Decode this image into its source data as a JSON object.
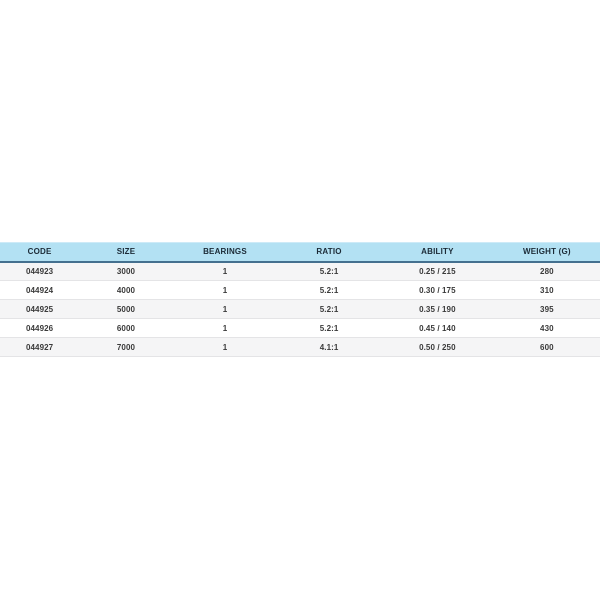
{
  "colors": {
    "page_background": "#ffffff",
    "header_background": "#b3e1f3",
    "header_underline": "#44708f",
    "row_alt_background": "#f5f5f6",
    "row_background": "#ffffff",
    "row_separator": "#e4e4e6",
    "header_text": "#1b2a36",
    "cell_text": "#3a3a3a"
  },
  "table": {
    "columns": {
      "code": "CODE",
      "size": "SIZE",
      "bearings": "BEARINGS",
      "ratio": "RATIO",
      "ability": "ABILITY",
      "weight": "WEIGHT (g)"
    },
    "rows": [
      {
        "code": "044923",
        "size": "3000",
        "bearings": "1",
        "ratio": "5.2:1",
        "ability": "0.25 / 215",
        "weight": "280"
      },
      {
        "code": "044924",
        "size": "4000",
        "bearings": "1",
        "ratio": "5.2:1",
        "ability": "0.30 / 175",
        "weight": "310"
      },
      {
        "code": "044925",
        "size": "5000",
        "bearings": "1",
        "ratio": "5.2:1",
        "ability": "0.35 / 190",
        "weight": "395"
      },
      {
        "code": "044926",
        "size": "6000",
        "bearings": "1",
        "ratio": "5.2:1",
        "ability": "0.45 / 140",
        "weight": "430"
      },
      {
        "code": "044927",
        "size": "7000",
        "bearings": "1",
        "ratio": "4.1:1",
        "ability": "0.50 / 250",
        "weight": "600"
      }
    ]
  }
}
